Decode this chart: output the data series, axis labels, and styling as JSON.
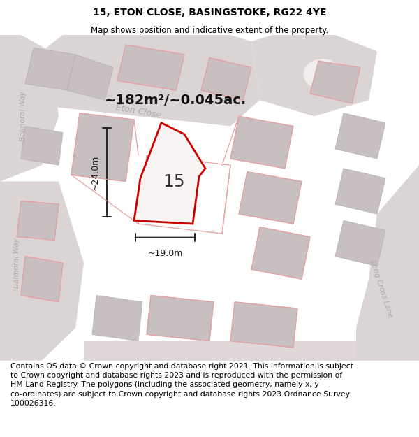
{
  "title": "15, ETON CLOSE, BASINGSTOKE, RG22 4YE",
  "subtitle": "Map shows position and indicative extent of the property.",
  "area_text": "~182m²/~0.045ac.",
  "number_label": "15",
  "dim_vertical": "~24.0m",
  "dim_horizontal": "~19.0m",
  "street_label_eton": "Eton Close",
  "street_label_balmoral1": "Balmoral Way",
  "street_label_balmoral2": "Balmoral Way",
  "street_label_long_cross": "Long Cross Lane",
  "footer_line1": "Contains OS data © Crown copyright and database right 2021. This information is subject",
  "footer_line2": "to Crown copyright and database rights 2023 and is reproduced with the permission of",
  "footer_line3": "HM Land Registry. The polygons (including the associated geometry, namely x, y",
  "footer_line4": "co-ordinates) are subject to Crown copyright and database rights 2023 Ordnance Survey",
  "footer_line5": "100026316.",
  "map_bg": "#f0eded",
  "road_fill": "#dbd4d4",
  "building_fill": "#c8c0c0",
  "building_edge": "#b8b0b0",
  "pink_line": "#e8a0a0",
  "red_color": "#cc0000",
  "dim_color": "#222222",
  "title_fontsize": 10,
  "subtitle_fontsize": 8.5,
  "area_fontsize": 14,
  "number_fontsize": 18,
  "dim_fontsize": 9,
  "street_fontsize": 9,
  "footer_fontsize": 7.8
}
